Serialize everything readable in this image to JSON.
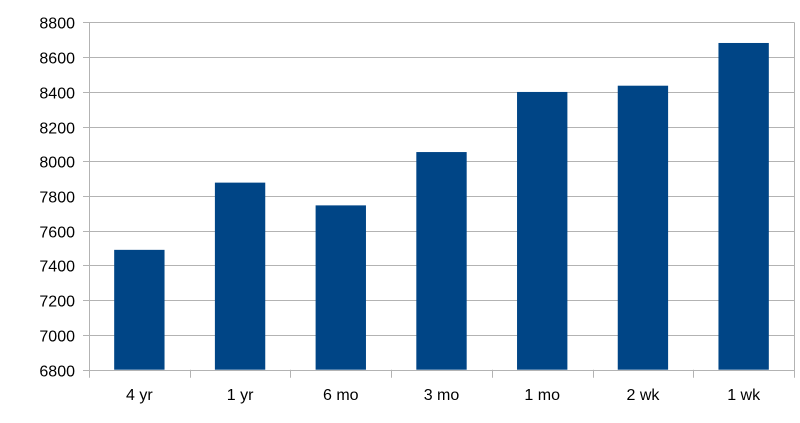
{
  "chart_data": {
    "type": "bar",
    "title": "",
    "xlabel": "",
    "ylabel": "",
    "categories": [
      "4 yr",
      "1 yr",
      "6 mo",
      "3 mo",
      "1 mo",
      "2 wk",
      "1 wk"
    ],
    "values": [
      7490,
      7877,
      7746,
      8053,
      8399,
      8435,
      8681
    ],
    "ylim": [
      6800,
      8800
    ],
    "yticks": [
      6800,
      7000,
      7200,
      7400,
      7600,
      7800,
      8000,
      8200,
      8400,
      8600,
      8800
    ],
    "grid": true,
    "legend": "none",
    "bar_color": "#004586",
    "grid_color": "#b3b3b3"
  }
}
